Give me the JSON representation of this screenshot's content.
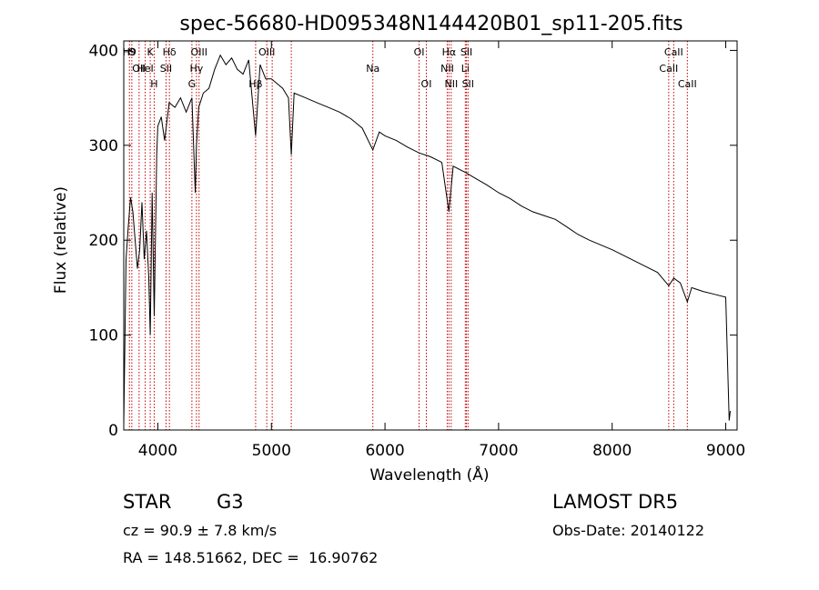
{
  "chart_data": {
    "type": "line",
    "title": "spec-56680-HD095348N144420B01_sp11-205.fits",
    "xlabel": "Wavelength (Å)",
    "ylabel": "Flux (relative)",
    "xlim": [
      3700,
      9100
    ],
    "ylim": [
      0,
      410
    ],
    "xticks": [
      4000,
      5000,
      6000,
      7000,
      8000,
      9000
    ],
    "yticks": [
      0,
      100,
      200,
      300,
      400
    ],
    "grid": false,
    "line_color": "#000000",
    "marker_color": "#c00000",
    "series": [
      {
        "x": [
          3700,
          3720,
          3740,
          3760,
          3780,
          3800,
          3820,
          3840,
          3860,
          3880,
          3900,
          3920,
          3933,
          3950,
          3968,
          3990,
          4000,
          4030,
          4060,
          4100,
          4150,
          4200,
          4250,
          4300,
          4330,
          4340,
          4360,
          4400,
          4450,
          4500,
          4550,
          4600,
          4650,
          4700,
          4750,
          4800,
          4861,
          4900,
          4950,
          5000,
          5050,
          5100,
          5150,
          5175,
          5200,
          5300,
          5400,
          5500,
          5600,
          5700,
          5800,
          5893,
          5950,
          6000,
          6100,
          6200,
          6300,
          6400,
          6500,
          6563,
          6600,
          6700,
          6800,
          6900,
          7000,
          7100,
          7200,
          7300,
          7400,
          7500,
          7600,
          7700,
          7800,
          7900,
          8000,
          8100,
          8200,
          8300,
          8400,
          8498,
          8542,
          8600,
          8662,
          8700,
          8800,
          8900,
          9000,
          9030,
          9040
        ],
        "y": [
          5,
          180,
          215,
          245,
          230,
          200,
          170,
          190,
          240,
          180,
          210,
          160,
          100,
          250,
          120,
          290,
          320,
          330,
          305,
          345,
          340,
          350,
          335,
          350,
          250,
          300,
          340,
          355,
          360,
          380,
          395,
          385,
          392,
          380,
          375,
          390,
          310,
          385,
          370,
          370,
          365,
          360,
          350,
          290,
          355,
          350,
          345,
          340,
          335,
          328,
          318,
          295,
          314,
          310,
          305,
          298,
          292,
          288,
          282,
          230,
          278,
          272,
          265,
          258,
          250,
          244,
          236,
          230,
          226,
          222,
          214,
          206,
          200,
          195,
          190,
          184,
          178,
          172,
          166,
          152,
          160,
          155,
          135,
          150,
          146,
          143,
          140,
          10,
          20
        ]
      }
    ],
    "lines": [
      {
        "x": 3750,
        "label": "H9",
        "row": 0
      },
      {
        "x": 3771,
        "label": "Θ",
        "row": 0
      },
      {
        "x": 3835,
        "label": "OII",
        "row": 1
      },
      {
        "x": 3889,
        "label": "HeI",
        "row": 1
      },
      {
        "x": 3933,
        "label": "K",
        "row": 0
      },
      {
        "x": 3968,
        "label": "H",
        "row": 2
      },
      {
        "x": 4072,
        "label": "SII",
        "row": 1
      },
      {
        "x": 4102,
        "label": "Hδ",
        "row": 0
      },
      {
        "x": 4300,
        "label": "G",
        "row": 2
      },
      {
        "x": 4340,
        "label": "Hγ",
        "row": 1
      },
      {
        "x": 4363,
        "label": "OIII",
        "row": 0
      },
      {
        "x": 4861,
        "label": "Hβ",
        "row": 2
      },
      {
        "x": 4959,
        "label": "OIII",
        "row": 0
      },
      {
        "x": 5007,
        "label": "",
        "row": 1
      },
      {
        "x": 5175,
        "label": "",
        "row": 2
      },
      {
        "x": 5893,
        "label": "Na",
        "row": 1
      },
      {
        "x": 6300,
        "label": "OI",
        "row": 0
      },
      {
        "x": 6364,
        "label": "OI",
        "row": 2
      },
      {
        "x": 6548,
        "label": "NII",
        "row": 1
      },
      {
        "x": 6563,
        "label": "Hα",
        "row": 0
      },
      {
        "x": 6583,
        "label": "NII",
        "row": 2
      },
      {
        "x": 6707,
        "label": "Li",
        "row": 1
      },
      {
        "x": 6717,
        "label": "SII",
        "row": 0
      },
      {
        "x": 6731,
        "label": "SII",
        "row": 2
      },
      {
        "x": 8498,
        "label": "CaII",
        "row": 1
      },
      {
        "x": 8542,
        "label": "CaII",
        "row": 0
      },
      {
        "x": 8662,
        "label": "CaII",
        "row": 2
      }
    ]
  },
  "info": {
    "object_type": "STAR",
    "subclass": "G3",
    "survey": "LAMOST DR5",
    "cz": "cz = 90.9 ± 7.8 km/s",
    "obs_date": "Obs-Date: 20140122",
    "coords": "RA = 148.51662, DEC =  16.90762"
  }
}
